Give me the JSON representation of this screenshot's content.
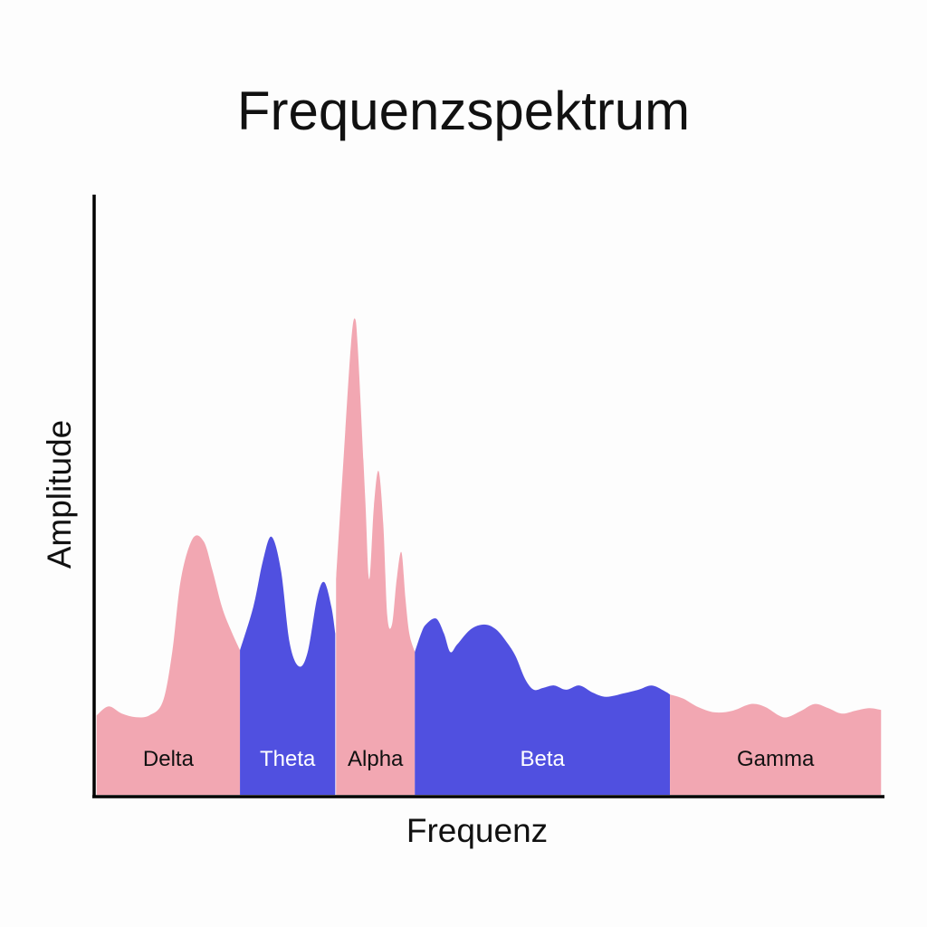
{
  "chart_data": {
    "type": "area",
    "title": "Frequenzspektrum",
    "xlabel": "Frequenz",
    "ylabel": "Amplitude",
    "xlim": [
      0,
      100
    ],
    "ylim": [
      0,
      100
    ],
    "grid": false,
    "colors": {
      "pink": "#F2A7B2",
      "blue": "#5050E0"
    },
    "bands": [
      {
        "name": "Delta",
        "color": "#F2A7B2",
        "label_color": "#111111",
        "points": [
          [
            0.2,
            13.3
          ],
          [
            1.7,
            14.8
          ],
          [
            3.4,
            13.6
          ],
          [
            5.2,
            13.0
          ],
          [
            6.9,
            13.3
          ],
          [
            8.6,
            15.6
          ],
          [
            9.8,
            23.9
          ],
          [
            10.9,
            36.1
          ],
          [
            12.4,
            42.9
          ],
          [
            13.8,
            42.4
          ],
          [
            14.9,
            37.6
          ],
          [
            16.1,
            31.5
          ],
          [
            17.2,
            27.7
          ],
          [
            18.4,
            24.2
          ]
        ]
      },
      {
        "name": "Theta",
        "color": "#5050E0",
        "label_color": "#ffffff",
        "points": [
          [
            18.4,
            24.2
          ],
          [
            20.1,
            31.5
          ],
          [
            21.3,
            39.1
          ],
          [
            22.4,
            43.2
          ],
          [
            23.6,
            37.6
          ],
          [
            24.7,
            25.5
          ],
          [
            25.9,
            21.5
          ],
          [
            27.0,
            23.9
          ],
          [
            28.2,
            33.0
          ],
          [
            29.1,
            35.6
          ],
          [
            30.0,
            31.5
          ],
          [
            30.5,
            27.0
          ]
        ]
      },
      {
        "name": "Alpha",
        "color": "#F2A7B2",
        "label_color": "#111111",
        "points": [
          [
            30.6,
            36.1
          ],
          [
            31.6,
            57.3
          ],
          [
            32.5,
            75.5
          ],
          [
            33.0,
            79.7
          ],
          [
            33.4,
            73.9
          ],
          [
            34.3,
            49.7
          ],
          [
            34.8,
            36.1
          ],
          [
            35.4,
            48.2
          ],
          [
            36.0,
            54.2
          ],
          [
            36.6,
            45.2
          ],
          [
            37.1,
            30.0
          ],
          [
            37.7,
            28.5
          ],
          [
            38.3,
            36.1
          ],
          [
            38.9,
            40.6
          ],
          [
            39.4,
            33.0
          ],
          [
            39.9,
            27.0
          ],
          [
            40.6,
            23.9
          ]
        ]
      },
      {
        "name": "Beta",
        "color": "#5050E0",
        "label_color": "#ffffff",
        "points": [
          [
            40.6,
            23.9
          ],
          [
            41.4,
            27.0
          ],
          [
            42.0,
            28.5
          ],
          [
            43.3,
            29.5
          ],
          [
            44.3,
            27.0
          ],
          [
            45.1,
            23.9
          ],
          [
            46.0,
            25.2
          ],
          [
            47.7,
            27.7
          ],
          [
            49.4,
            28.5
          ],
          [
            50.9,
            27.7
          ],
          [
            52.3,
            25.5
          ],
          [
            53.4,
            23.2
          ],
          [
            54.6,
            19.4
          ],
          [
            55.7,
            17.6
          ],
          [
            56.9,
            17.9
          ],
          [
            58.3,
            18.3
          ],
          [
            59.8,
            17.6
          ],
          [
            61.5,
            18.3
          ],
          [
            63.2,
            17.1
          ],
          [
            64.9,
            16.4
          ],
          [
            67.2,
            17.0
          ],
          [
            69.0,
            17.6
          ],
          [
            70.7,
            18.3
          ],
          [
            72.4,
            17.3
          ],
          [
            73.0,
            16.8
          ]
        ]
      },
      {
        "name": "Gamma",
        "color": "#F2A7B2",
        "label_color": "#111111",
        "points": [
          [
            73.0,
            16.8
          ],
          [
            74.7,
            16.1
          ],
          [
            76.4,
            14.8
          ],
          [
            78.7,
            13.8
          ],
          [
            81.0,
            14.1
          ],
          [
            83.3,
            15.2
          ],
          [
            85.1,
            14.7
          ],
          [
            86.8,
            13.3
          ],
          [
            87.9,
            13.0
          ],
          [
            89.7,
            14.1
          ],
          [
            91.4,
            15.2
          ],
          [
            93.1,
            14.5
          ],
          [
            94.8,
            13.6
          ],
          [
            96.6,
            14.1
          ],
          [
            98.3,
            14.5
          ],
          [
            99.8,
            14.2
          ]
        ]
      }
    ]
  }
}
